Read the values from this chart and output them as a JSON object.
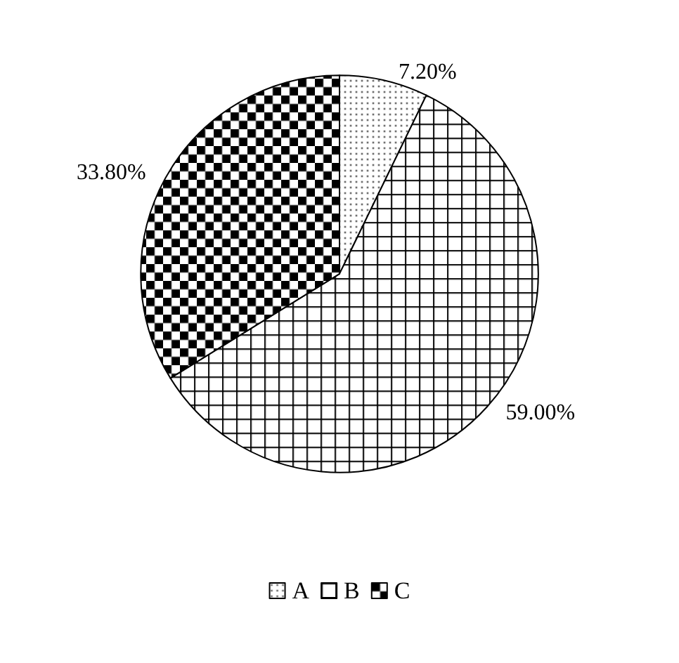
{
  "chart_data": {
    "type": "pie",
    "categories": [
      "A",
      "B",
      "C"
    ],
    "values": [
      7.2,
      59.0,
      33.8
    ],
    "colors": [
      "#000000",
      "#000000",
      "#000000"
    ],
    "value_labels": [
      "7.20%",
      "59.00%",
      "33.80%"
    ],
    "legend": "bottom"
  }
}
